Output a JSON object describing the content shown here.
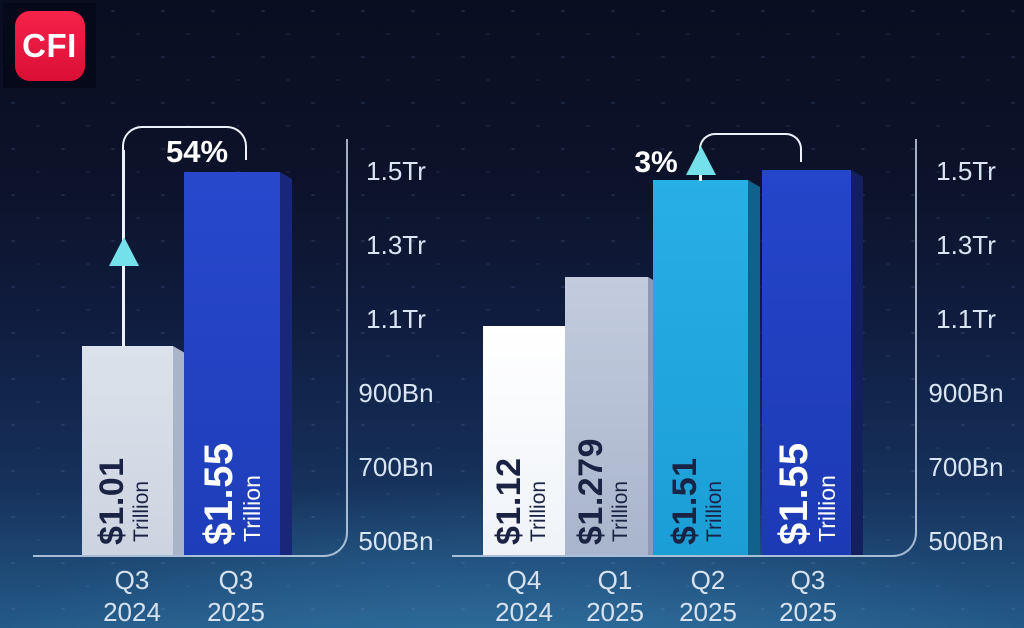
{
  "logo": {
    "label": "CFI",
    "color": "#e8173c"
  },
  "colors": {
    "background_top": "#0a0e21",
    "background_bottom": "#245a88",
    "bar_blue": "#2343c6",
    "bar_cyan": "#22a9e0",
    "bar_gray": "#d5dbe6",
    "bar_lavender": "#b6c0d6",
    "bar_white": "#ffffff",
    "arrow_cyan": "#74e0e9",
    "value_text_dark": "#1a2344",
    "value_text_light": "#ffffff"
  },
  "y_axis": {
    "labels": [
      "1.5Tr",
      "1.3Tr",
      "1.1Tr",
      "900Bn",
      "700Bn",
      "500Bn"
    ]
  },
  "left_chart": {
    "change_label": "54%",
    "bars": [
      {
        "value": "$1.01",
        "unit": "Trillion",
        "period_line1": "Q3",
        "period_line2": "2024"
      },
      {
        "value": "$1.55",
        "unit": "Trillion",
        "period_line1": "Q3",
        "period_line2": "2025"
      }
    ]
  },
  "right_chart": {
    "change_label": "3%",
    "bars": [
      {
        "value": "$1.12",
        "unit": "Trillion",
        "period_line1": "Q4",
        "period_line2": "2024"
      },
      {
        "value": "$1.279",
        "unit": "Trillion",
        "period_line1": "Q1",
        "period_line2": "2025"
      },
      {
        "value": "$1.51",
        "unit": "Trillion",
        "period_line1": "Q2",
        "period_line2": "2025"
      },
      {
        "value": "$1.55",
        "unit": "Trillion",
        "period_line1": "Q3",
        "period_line2": "2025"
      }
    ]
  },
  "chart_data": [
    {
      "type": "bar",
      "categories": [
        "Q3 2024",
        "Q3 2025"
      ],
      "values_trillions_usd": [
        1.01,
        1.55
      ],
      "data_labels": [
        "$1.01 Trillion",
        "$1.55 Trillion"
      ],
      "annotation": "54%",
      "y_ticks": [
        "500Bn",
        "700Bn",
        "900Bn",
        "1.1Tr",
        "1.3Tr",
        "1.5Tr"
      ],
      "ylim_bn": [
        500,
        1600
      ],
      "grid": false,
      "legend": false
    },
    {
      "type": "bar",
      "categories": [
        "Q4 2024",
        "Q1 2025",
        "Q2 2025",
        "Q3 2025"
      ],
      "values_trillions_usd": [
        1.12,
        1.279,
        1.51,
        1.55
      ],
      "data_labels": [
        "$1.12 Trillion",
        "$1.279 Trillion",
        "$1.51 Trillion",
        "$1.55 Trillion"
      ],
      "annotation": "3%",
      "y_ticks": [
        "500Bn",
        "700Bn",
        "900Bn",
        "1.1Tr",
        "1.3Tr",
        "1.5Tr"
      ],
      "ylim_bn": [
        500,
        1600
      ],
      "grid": false,
      "legend": false
    }
  ]
}
